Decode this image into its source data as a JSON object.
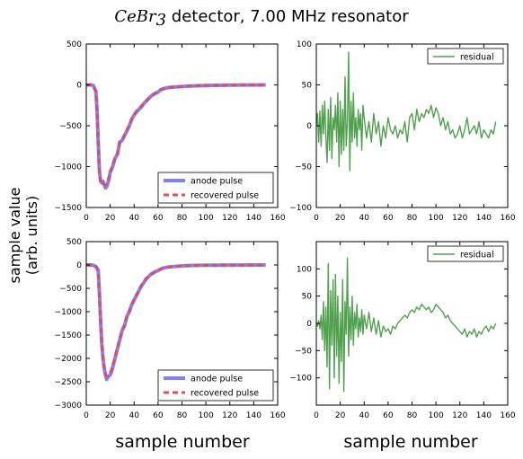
{
  "figure": {
    "title_math": "CeBr",
    "title_sub": "3",
    "title_text": " detector, 7.00 MHz resonator",
    "ylabel_line1": "sample value",
    "ylabel_line2": "(arb. units)",
    "xlabel_left": "sample number",
    "xlabel_right": "sample number"
  },
  "chart_data": [
    {
      "type": "line",
      "panel": "top-left",
      "xlim": [
        0,
        160
      ],
      "ylim": [
        -1500,
        500
      ],
      "xticks": [
        0,
        20,
        40,
        60,
        80,
        100,
        120,
        140,
        160
      ],
      "yticks": [
        -1500,
        -1000,
        -500,
        0,
        500
      ],
      "legend_position": "lower-right",
      "series": [
        {
          "name": "anode pulse",
          "color": "#8080ff",
          "style": "solid",
          "x": [
            0,
            2,
            4,
            6,
            8,
            9,
            10,
            11,
            12,
            13,
            14,
            15,
            16,
            17,
            18,
            19,
            20,
            22,
            24,
            26,
            28,
            30,
            32,
            34,
            36,
            38,
            40,
            42,
            44,
            46,
            48,
            50,
            52,
            54,
            56,
            58,
            60,
            62,
            64,
            66,
            70,
            75,
            80,
            85,
            90,
            95,
            100,
            105,
            110,
            115,
            120,
            125,
            130,
            135,
            140,
            145,
            150
          ],
          "y": [
            0,
            0,
            0,
            -10,
            -80,
            -300,
            -700,
            -1050,
            -1180,
            -1200,
            -1180,
            -1220,
            -1260,
            -1250,
            -1200,
            -1150,
            -1070,
            -1000,
            -900,
            -850,
            -700,
            -680,
            -620,
            -560,
            -500,
            -420,
            -370,
            -330,
            -300,
            -270,
            -230,
            -200,
            -170,
            -140,
            -120,
            -100,
            -90,
            -60,
            -50,
            -40,
            -30,
            -25,
            -20,
            -15,
            -12,
            -10,
            -8,
            -6,
            -5,
            -4,
            -3,
            -3,
            -2,
            -2,
            -1,
            -1,
            0
          ]
        },
        {
          "name": "recovered pulse",
          "color": "#e05050",
          "style": "dashed",
          "x": [
            0,
            2,
            4,
            6,
            8,
            9,
            10,
            11,
            12,
            13,
            14,
            15,
            16,
            17,
            18,
            19,
            20,
            22,
            24,
            26,
            28,
            30,
            32,
            34,
            36,
            38,
            40,
            42,
            44,
            46,
            48,
            50,
            52,
            54,
            56,
            58,
            60,
            62,
            64,
            66,
            70,
            75,
            80,
            85,
            90,
            95,
            100,
            105,
            110,
            115,
            120,
            125,
            130,
            135,
            140,
            145,
            150
          ],
          "y": [
            0,
            0,
            0,
            -10,
            -80,
            -320,
            -720,
            -1070,
            -1190,
            -1210,
            -1200,
            -1220,
            -1230,
            -1220,
            -1180,
            -1120,
            -1060,
            -990,
            -890,
            -840,
            -700,
            -670,
            -610,
            -550,
            -490,
            -420,
            -370,
            -320,
            -290,
            -260,
            -225,
            -195,
            -165,
            -138,
            -115,
            -98,
            -85,
            -60,
            -50,
            -40,
            -30,
            -25,
            -20,
            -15,
            -12,
            -10,
            -8,
            -6,
            -5,
            -4,
            -3,
            -3,
            -2,
            -2,
            -1,
            -1,
            0
          ]
        }
      ]
    },
    {
      "type": "line",
      "panel": "top-right",
      "xlim": [
        0,
        160
      ],
      "ylim": [
        -100,
        100
      ],
      "xticks": [
        0,
        20,
        40,
        60,
        80,
        100,
        120,
        140,
        160
      ],
      "yticks": [
        -100,
        -50,
        0,
        50,
        100
      ],
      "legend_position": "upper-right",
      "series": [
        {
          "name": "residual",
          "color": "#50a050",
          "style": "solid",
          "x": [
            0,
            1,
            2,
            3,
            4,
            5,
            6,
            7,
            8,
            9,
            10,
            11,
            12,
            13,
            14,
            15,
            16,
            17,
            18,
            19,
            20,
            21,
            22,
            23,
            24,
            25,
            26,
            27,
            28,
            29,
            30,
            31,
            32,
            33,
            34,
            35,
            36,
            37,
            38,
            39,
            40,
            42,
            44,
            46,
            48,
            50,
            52,
            54,
            56,
            58,
            60,
            62,
            64,
            66,
            68,
            70,
            72,
            74,
            76,
            78,
            80,
            82,
            84,
            86,
            88,
            90,
            92,
            94,
            96,
            98,
            100,
            102,
            104,
            106,
            108,
            110,
            112,
            114,
            116,
            118,
            120,
            122,
            124,
            126,
            128,
            130,
            132,
            134,
            136,
            138,
            140,
            142,
            144,
            146,
            148,
            150
          ],
          "y": [
            0,
            15,
            -20,
            18,
            -25,
            25,
            -10,
            30,
            -15,
            -45,
            20,
            -30,
            35,
            -40,
            10,
            -5,
            25,
            -20,
            40,
            -50,
            30,
            -35,
            20,
            -30,
            60,
            -25,
            5,
            90,
            -55,
            30,
            -20,
            40,
            -15,
            10,
            -25,
            20,
            -5,
            15,
            -30,
            25,
            10,
            -15,
            5,
            -20,
            15,
            -10,
            5,
            -25,
            0,
            -15,
            10,
            -5,
            -10,
            0,
            -15,
            -5,
            -10,
            5,
            -20,
            10,
            15,
            -5,
            20,
            5,
            15,
            10,
            20,
            15,
            25,
            10,
            22,
            15,
            0,
            10,
            -5,
            5,
            -10,
            -5,
            -15,
            -10,
            0,
            -15,
            -5,
            10,
            -10,
            -5,
            0,
            -10,
            5,
            -15,
            -5,
            -10,
            -15,
            -5,
            -10,
            5
          ]
        }
      ]
    },
    {
      "type": "line",
      "panel": "bottom-left",
      "xlim": [
        0,
        160
      ],
      "ylim": [
        -3000,
        500
      ],
      "xticks": [
        0,
        20,
        40,
        60,
        80,
        100,
        120,
        140,
        160
      ],
      "yticks": [
        -3000,
        -2500,
        -2000,
        -1500,
        -1000,
        -500,
        0,
        500
      ],
      "legend_position": "lower-right",
      "series": [
        {
          "name": "anode pulse",
          "color": "#8080ff",
          "style": "solid",
          "x": [
            0,
            2,
            4,
            6,
            8,
            10,
            11,
            12,
            13,
            14,
            15,
            16,
            17,
            18,
            19,
            20,
            21,
            22,
            24,
            26,
            28,
            30,
            32,
            34,
            36,
            38,
            40,
            42,
            44,
            46,
            48,
            50,
            52,
            54,
            56,
            58,
            60,
            62,
            64,
            66,
            70,
            75,
            80,
            85,
            90,
            95,
            100,
            105,
            110,
            115,
            120,
            125,
            130,
            135,
            140,
            145,
            150
          ],
          "y": [
            0,
            0,
            0,
            -10,
            -30,
            -120,
            -600,
            -1200,
            -1700,
            -2000,
            -2200,
            -2350,
            -2450,
            -2400,
            -2380,
            -2350,
            -2300,
            -2200,
            -2000,
            -1800,
            -1600,
            -1400,
            -1300,
            -1100,
            -1000,
            -850,
            -750,
            -650,
            -550,
            -450,
            -380,
            -300,
            -250,
            -200,
            -170,
            -140,
            -120,
            -90,
            -70,
            -55,
            -40,
            -30,
            -20,
            -15,
            -10,
            -8,
            -6,
            -5,
            -4,
            -3,
            -3,
            -2,
            -2,
            -1,
            -1,
            0,
            0
          ]
        },
        {
          "name": "recovered pulse",
          "color": "#e05050",
          "style": "dashed",
          "x": [
            0,
            2,
            4,
            6,
            8,
            10,
            11,
            12,
            13,
            14,
            15,
            16,
            17,
            18,
            19,
            20,
            21,
            22,
            24,
            26,
            28,
            30,
            32,
            34,
            36,
            38,
            40,
            42,
            44,
            46,
            48,
            50,
            52,
            54,
            56,
            58,
            60,
            62,
            64,
            66,
            70,
            75,
            80,
            85,
            90,
            95,
            100,
            105,
            110,
            115,
            120,
            125,
            130,
            135,
            140,
            145,
            150
          ],
          "y": [
            0,
            0,
            0,
            -10,
            -30,
            -130,
            -620,
            -1220,
            -1720,
            -2020,
            -2210,
            -2330,
            -2380,
            -2370,
            -2340,
            -2300,
            -2250,
            -2170,
            -1980,
            -1780,
            -1580,
            -1390,
            -1280,
            -1090,
            -990,
            -840,
            -740,
            -640,
            -545,
            -445,
            -375,
            -298,
            -248,
            -198,
            -168,
            -138,
            -118,
            -88,
            -68,
            -54,
            -40,
            -30,
            -20,
            -15,
            -10,
            -8,
            -6,
            -5,
            -4,
            -3,
            -3,
            -2,
            -2,
            -1,
            -1,
            0,
            0
          ]
        }
      ]
    },
    {
      "type": "line",
      "panel": "bottom-right",
      "xlim": [
        0,
        160
      ],
      "ylim": [
        -150,
        150
      ],
      "xticks": [
        0,
        20,
        40,
        60,
        80,
        100,
        120,
        140,
        160
      ],
      "yticks": [
        -100,
        -50,
        0,
        50,
        100
      ],
      "legend_position": "upper-right",
      "series": [
        {
          "name": "residual",
          "color": "#50a050",
          "style": "solid",
          "x": [
            0,
            1,
            2,
            3,
            4,
            5,
            6,
            7,
            8,
            9,
            10,
            11,
            12,
            13,
            14,
            15,
            16,
            17,
            18,
            19,
            20,
            21,
            22,
            23,
            24,
            25,
            26,
            27,
            28,
            29,
            30,
            31,
            32,
            33,
            34,
            35,
            36,
            37,
            38,
            39,
            40,
            42,
            44,
            46,
            48,
            50,
            52,
            54,
            56,
            58,
            60,
            62,
            64,
            66,
            68,
            70,
            72,
            74,
            76,
            78,
            80,
            82,
            84,
            86,
            88,
            90,
            92,
            94,
            96,
            98,
            100,
            102,
            104,
            106,
            108,
            110,
            112,
            114,
            116,
            118,
            120,
            122,
            124,
            126,
            128,
            130,
            132,
            134,
            136,
            138,
            140,
            142,
            144,
            146,
            148,
            150
          ],
          "y": [
            0,
            -5,
            5,
            -10,
            15,
            -30,
            40,
            -50,
            30,
            -80,
            110,
            -120,
            60,
            -40,
            80,
            -100,
            90,
            -60,
            50,
            -110,
            20,
            -70,
            80,
            -125,
            40,
            -20,
            120,
            -60,
            30,
            -30,
            50,
            -40,
            20,
            -10,
            35,
            -25,
            10,
            -15,
            25,
            -20,
            15,
            -10,
            20,
            -15,
            10,
            -20,
            5,
            -25,
            -5,
            -15,
            -10,
            -20,
            -5,
            -10,
            0,
            5,
            10,
            15,
            10,
            20,
            25,
            20,
            30,
            25,
            35,
            30,
            25,
            30,
            20,
            25,
            35,
            30,
            25,
            20,
            10,
            15,
            5,
            0,
            -5,
            -10,
            -15,
            -20,
            -10,
            -25,
            -15,
            -20,
            -10,
            -25,
            -15,
            -20,
            -10,
            -5,
            -15,
            -5,
            -10,
            0
          ]
        }
      ]
    }
  ]
}
